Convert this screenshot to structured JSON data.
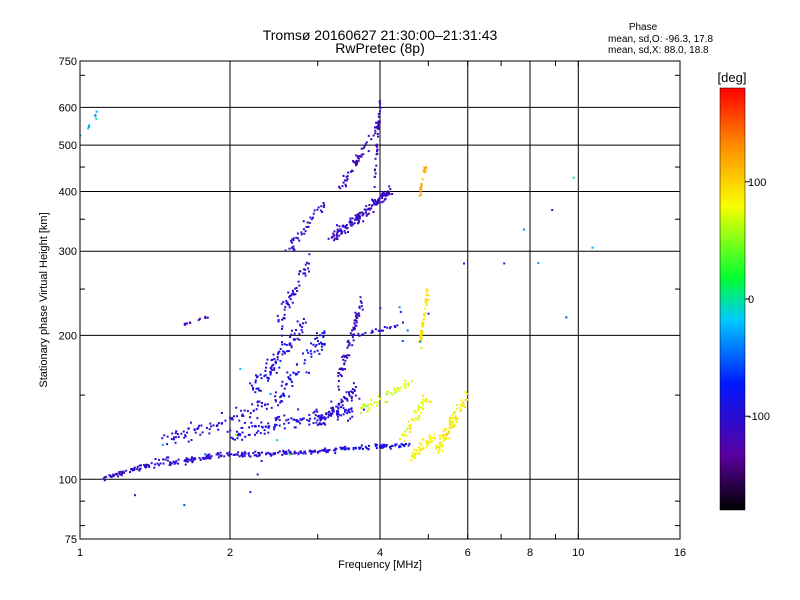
{
  "chart_data": {
    "type": "scatter",
    "title": "Tromsø 20160627 21:30:00–21:31:43",
    "subtitle": "RwPretec (8p)",
    "xlabel": "Frequency [MHz]",
    "ylabel": "Stationary phase Virtual Height [km]",
    "x_scale": "log",
    "y_scale": "log",
    "xlim": [
      1,
      16
    ],
    "ylim": [
      75,
      750
    ],
    "x_ticks": [
      1,
      2,
      4,
      6,
      8,
      10,
      16
    ],
    "x_tick_labels": [
      "1",
      "2",
      "4",
      "6",
      "8",
      "10",
      "16"
    ],
    "y_ticks": [
      75,
      100,
      200,
      300,
      400,
      500,
      600,
      750
    ],
    "y_tick_labels": [
      "75",
      "100",
      "200",
      "300",
      "400",
      "500",
      "600",
      "750"
    ],
    "grid": true,
    "phase_box": {
      "heading": "Phase",
      "line_o": "mean, sd,O: -96.3, 17.8",
      "line_x": "mean, sd,X: 88.0, 18.8"
    },
    "colorbar": {
      "label": "[deg]",
      "ticks": [
        -100,
        0,
        100
      ],
      "tick_labels": [
        "-100",
        "0",
        "100"
      ],
      "range": [
        -180,
        180
      ]
    },
    "series": [
      {
        "segments": [
          {
            "f0": 1.1,
            "f1": 1.5,
            "h0": 100,
            "h1": 110,
            "n": 70,
            "fs": 0.012,
            "hs": 0.014,
            "ph": -105,
            "pz": 14
          },
          {
            "f0": 1.5,
            "f1": 2.0,
            "h0": 108,
            "h1": 113,
            "n": 70,
            "fs": 0.01,
            "hs": 0.012,
            "ph": -100,
            "pz": 14
          },
          {
            "f0": 2.0,
            "f1": 3.3,
            "h0": 112,
            "h1": 115,
            "n": 110,
            "fs": 0.01,
            "hs": 0.012,
            "ph": -100,
            "pz": 16
          },
          {
            "f0": 3.3,
            "f1": 4.6,
            "h0": 116,
            "h1": 118,
            "n": 70,
            "fs": 0.01,
            "hs": 0.01,
            "ph": -90,
            "pz": 18
          },
          {
            "f0": 1.5,
            "f1": 2.6,
            "h0": 120,
            "h1": 150,
            "n": 90,
            "fs": 0.03,
            "hs": 0.04,
            "ph": -100,
            "pz": 16
          },
          {
            "f0": 2.0,
            "f1": 3.6,
            "h0": 125,
            "h1": 140,
            "n": 130,
            "fs": 0.03,
            "hs": 0.04,
            "ph": -95,
            "pz": 22
          },
          {
            "f0": 2.2,
            "f1": 2.8,
            "h0": 150,
            "h1": 210,
            "n": 90,
            "fs": 0.02,
            "hs": 0.05,
            "ph": -95,
            "pz": 20
          },
          {
            "f0": 2.5,
            "f1": 3.1,
            "h0": 150,
            "h1": 200,
            "n": 60,
            "fs": 0.02,
            "hs": 0.05,
            "ph": -88,
            "pz": 20
          },
          {
            "f0": 2.5,
            "f1": 2.9,
            "h0": 210,
            "h1": 290,
            "n": 50,
            "fs": 0.02,
            "hs": 0.04,
            "ph": -100,
            "pz": 14
          },
          {
            "f0": 2.6,
            "f1": 3.1,
            "h0": 300,
            "h1": 380,
            "n": 40,
            "fs": 0.02,
            "hs": 0.03,
            "ph": -100,
            "pz": 12
          },
          {
            "f0": 3.0,
            "f1": 3.6,
            "h0": 130,
            "h1": 155,
            "n": 70,
            "fs": 0.02,
            "hs": 0.02,
            "ph": -105,
            "pz": 12
          },
          {
            "f0": 3.3,
            "f1": 3.7,
            "h0": 160,
            "h1": 240,
            "n": 70,
            "fs": 0.01,
            "hs": 0.04,
            "ph": -110,
            "pz": 12
          },
          {
            "f0": 3.2,
            "f1": 4.2,
            "h0": 320,
            "h1": 400,
            "n": 150,
            "fs": 0.015,
            "hs": 0.025,
            "ph": -110,
            "pz": 14
          },
          {
            "f0": 3.3,
            "f1": 4.0,
            "h0": 400,
            "h1": 560,
            "n": 60,
            "fs": 0.01,
            "hs": 0.03,
            "ph": -110,
            "pz": 12
          },
          {
            "f0": 3.9,
            "f1": 4.0,
            "h0": 420,
            "h1": 620,
            "n": 30,
            "fs": 0.005,
            "hs": 0.04,
            "ph": -115,
            "pz": 10
          },
          {
            "f0": 3.6,
            "f1": 4.4,
            "h0": 200,
            "h1": 210,
            "n": 20,
            "fs": 0.01,
            "hs": 0.01,
            "ph": -100,
            "pz": 12
          },
          {
            "f0": 1.6,
            "f1": 1.8,
            "h0": 210,
            "h1": 218,
            "n": 12,
            "fs": 0.005,
            "hs": 0.005,
            "ph": -115,
            "pz": 6
          },
          {
            "f0": 3.7,
            "f1": 4.6,
            "h0": 140,
            "h1": 160,
            "n": 45,
            "fs": 0.02,
            "hs": 0.03,
            "ph": 70,
            "pz": 18
          },
          {
            "f0": 4.4,
            "f1": 5.0,
            "h0": 120,
            "h1": 150,
            "n": 45,
            "fs": 0.02,
            "hs": 0.03,
            "ph": 80,
            "pz": 20
          },
          {
            "f0": 4.8,
            "f1": 5.0,
            "h0": 190,
            "h1": 250,
            "n": 45,
            "fs": 0.005,
            "hs": 0.03,
            "ph": 95,
            "pz": 8
          },
          {
            "f0": 4.6,
            "f1": 5.2,
            "h0": 110,
            "h1": 125,
            "n": 50,
            "fs": 0.02,
            "hs": 0.02,
            "ph": 85,
            "pz": 14
          },
          {
            "f0": 5.2,
            "f1": 6.0,
            "h0": 115,
            "h1": 150,
            "n": 80,
            "fs": 0.015,
            "hs": 0.03,
            "ph": 85,
            "pz": 20
          },
          {
            "f0": 4.8,
            "f1": 4.95,
            "h0": 390,
            "h1": 460,
            "n": 18,
            "fs": 0.005,
            "hs": 0.02,
            "ph": 120,
            "pz": 10
          },
          {
            "f0": 1.0,
            "f1": 1.1,
            "h0": 520,
            "h1": 600,
            "n": 8,
            "fs": 0.01,
            "hs": 0.02,
            "ph": -20,
            "pz": 40
          },
          {
            "f0": 1.3,
            "f1": 14.0,
            "h0": 90,
            "h1": 400,
            "n": 30,
            "fs": 0.3,
            "hs": 0.3,
            "ph": -60,
            "pz": 80
          }
        ]
      }
    ]
  }
}
